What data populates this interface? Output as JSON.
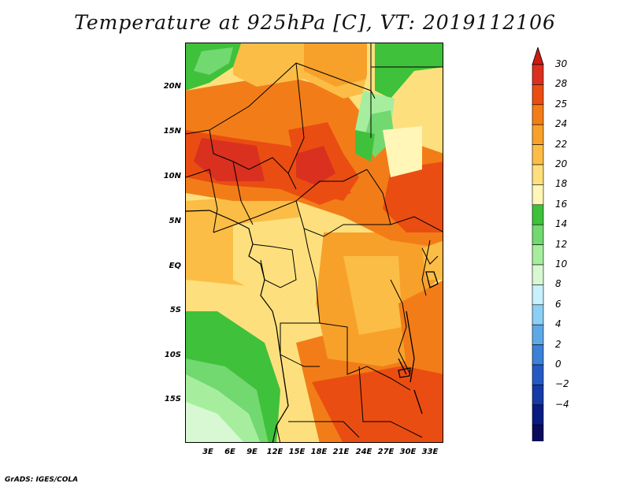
{
  "title": "Temperature at 925hPa [C], VT: 2019112106",
  "credit": "GrADS: IGES/COLA",
  "map": {
    "variable": "Temperature at 925hPa",
    "units": "C",
    "valid_time": "2019112106",
    "lat_labels": [
      "20N",
      "15N",
      "10N",
      "5N",
      "EQ",
      "5S",
      "10S",
      "15S"
    ],
    "lon_labels": [
      "3E",
      "6E",
      "9E",
      "12E",
      "15E",
      "18E",
      "21E",
      "24E",
      "27E",
      "30E",
      "33E"
    ]
  },
  "colorbar": {
    "labels": [
      "30",
      "28",
      "25",
      "24",
      "22",
      "20",
      "18",
      "16",
      "14",
      "12",
      "10",
      "8",
      "6",
      "4",
      "2",
      "0",
      "−2",
      "−4"
    ],
    "colors": [
      "#d9301f",
      "#ea4d12",
      "#f27d18",
      "#f7a12b",
      "#fbbd45",
      "#fde07d",
      "#fff6b8",
      "#3fc13b",
      "#72d870",
      "#a6ee9e",
      "#d8f8d4",
      "#c8f0fd",
      "#8dcff4",
      "#5fa8e6",
      "#3c80d8",
      "#2459c4",
      "#143aa6",
      "#071b80",
      "#0b0b5c"
    ],
    "top_arrow_color": "#cc1b12",
    "bottom_arrow_color": "#ddddf5"
  }
}
